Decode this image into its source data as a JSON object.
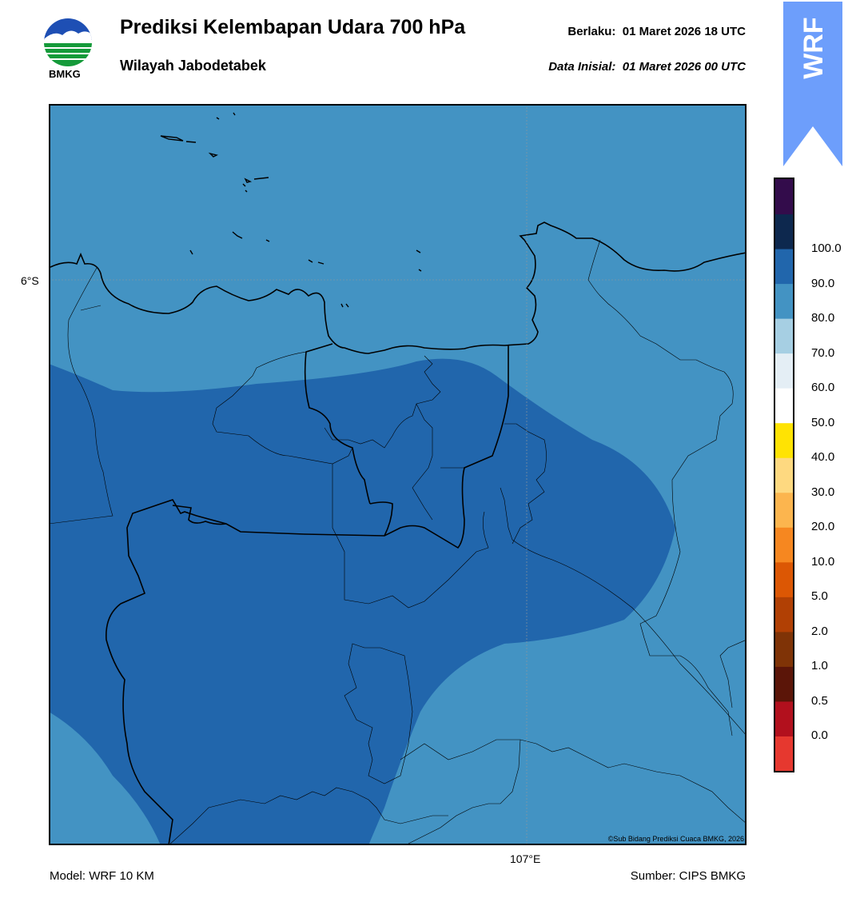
{
  "header": {
    "title": "Prediksi Kelembapan Udara 700 hPa",
    "subtitle": "Wilayah Jabodetabek",
    "valid_label": "Berlaku:",
    "valid_value": "01 Maret 2026 18 UTC",
    "init_label": "Data Inisial:",
    "init_value": "01 Maret 2026 00 UTC",
    "logo_text": "BMKG",
    "wrf_badge": "WRF"
  },
  "map": {
    "lat_label": "6°S",
    "lon_label": "107°E",
    "copyright": "©Sub Bidang Prediksi Cuaca BMKG, 2026",
    "fill_colors": {
      "band_70_80": "#4393c3",
      "band_80_90": "#2166ac"
    }
  },
  "colorbar": {
    "labels": [
      "0.0",
      "0.5",
      "1.0",
      "2.0",
      "5.0",
      "10.0",
      "20.0",
      "30.0",
      "40.0",
      "50.0",
      "60.0",
      "70.0",
      "80.0",
      "90.0",
      "100.0"
    ],
    "colors_bottom_to_top": [
      "#e6382f",
      "#b2101d",
      "#5b1508",
      "#7f3306",
      "#b14004",
      "#dc5704",
      "#f68720",
      "#fcb54e",
      "#fed980",
      "#ffe303",
      "#ffffff",
      "#e4eef5",
      "#a6cfe3",
      "#4393c3",
      "#2166ac",
      "#0d284e",
      "#330c4b"
    ]
  },
  "footer": {
    "model": "Model: WRF 10 KM",
    "source": "Sumber: CIPS BMKG"
  }
}
